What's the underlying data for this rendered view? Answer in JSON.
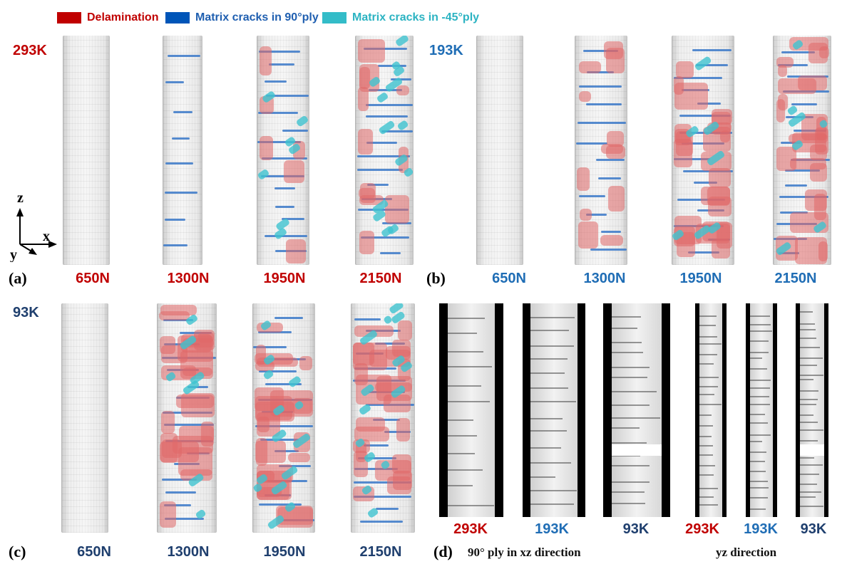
{
  "legend": {
    "delamination": {
      "label": "Delamination",
      "color": "#c00000"
    },
    "matrix90": {
      "label": "Matrix cracks in 90°ply",
      "color": "#0055b8"
    },
    "matrix45": {
      "label": "Matrix cracks in -45°ply",
      "color": "#33bcc8"
    }
  },
  "colors": {
    "red": "#c00000",
    "blue": "#1f6db5",
    "navy": "#1f3f6e"
  },
  "axes": {
    "z": "z",
    "x": "x",
    "y": "y"
  },
  "panels": {
    "a": {
      "label": "(a)",
      "temp": "293K",
      "loads": [
        "650N",
        "1300N",
        "1950N",
        "2150N"
      ]
    },
    "b": {
      "label": "(b)",
      "temp": "193K",
      "loads": [
        "650N",
        "1300N",
        "1950N",
        "2150N"
      ]
    },
    "c": {
      "label": "(c)",
      "temp": "93K",
      "loads": [
        "650N",
        "1300N",
        "1950N",
        "2150N"
      ]
    },
    "d": {
      "label": "(d)",
      "xz_temps": [
        "293K",
        "193K",
        "93K"
      ],
      "yz_temps": [
        "293K",
        "193K",
        "93K"
      ],
      "xz_caption": "90° ply in xz direction",
      "yz_caption": "yz direction"
    }
  }
}
